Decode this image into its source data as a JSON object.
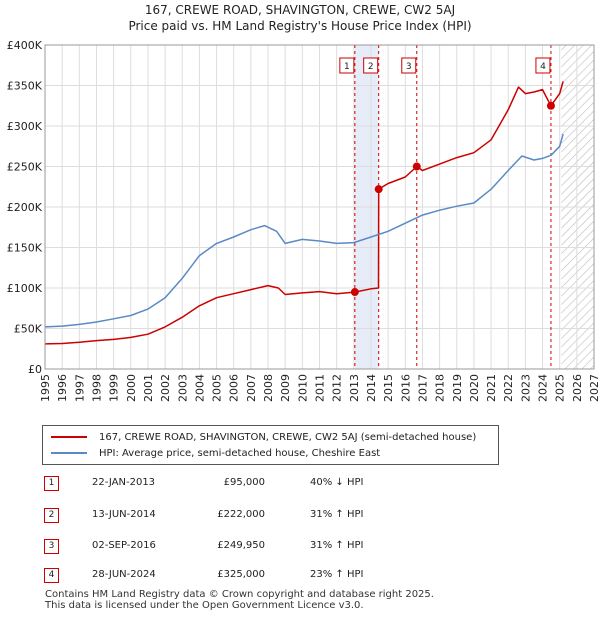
{
  "title_line1": "167, CREWE ROAD, SHAVINGTON, CREWE, CW2 5AJ",
  "title_line2": "Price paid vs. HM Land Registry's House Price Index (HPI)",
  "chart_data": {
    "type": "line",
    "x_range": [
      1995,
      2027
    ],
    "y_range": [
      0,
      400000
    ],
    "y_ticks": [
      {
        "value": 0,
        "label": "£0"
      },
      {
        "value": 50000,
        "label": "£50K"
      },
      {
        "value": 100000,
        "label": "£100K"
      },
      {
        "value": 150000,
        "label": "£150K"
      },
      {
        "value": 200000,
        "label": "£200K"
      },
      {
        "value": 250000,
        "label": "£250K"
      },
      {
        "value": 300000,
        "label": "£300K"
      },
      {
        "value": 350000,
        "label": "£350K"
      },
      {
        "value": 400000,
        "label": "£400K"
      }
    ],
    "x_ticks": [
      1995,
      1996,
      1997,
      1998,
      1999,
      2000,
      2001,
      2002,
      2003,
      2004,
      2005,
      2006,
      2007,
      2008,
      2009,
      2010,
      2011,
      2012,
      2013,
      2014,
      2015,
      2016,
      2017,
      2018,
      2019,
      2020,
      2021,
      2022,
      2023,
      2024,
      2025,
      2026,
      2027
    ],
    "grid": true,
    "forecast_hatch_from": 2025.1,
    "series": [
      {
        "name": "167, CREWE ROAD, SHAVINGTON, CREWE, CW2 5AJ (semi-detached house)",
        "color": "#cc0000",
        "points": [
          [
            1995,
            31000
          ],
          [
            1996,
            31500
          ],
          [
            1997,
            33000
          ],
          [
            1998,
            35000
          ],
          [
            1999,
            36500
          ],
          [
            2000,
            39000
          ],
          [
            2001,
            43000
          ],
          [
            2002,
            52000
          ],
          [
            2003,
            64000
          ],
          [
            2004,
            78000
          ],
          [
            2005,
            88000
          ],
          [
            2006,
            93000
          ],
          [
            2007,
            98000
          ],
          [
            2008,
            103000
          ],
          [
            2008.6,
            100000
          ],
          [
            2009,
            92000
          ],
          [
            2010,
            94000
          ],
          [
            2011,
            95500
          ],
          [
            2012,
            93000
          ],
          [
            2013.06,
            95000
          ],
          [
            2014,
            99000
          ],
          [
            2014.44,
            100000
          ],
          [
            2014.45,
            222000
          ],
          [
            2015,
            229000
          ],
          [
            2016,
            237000
          ],
          [
            2016.67,
            249950
          ],
          [
            2017,
            245000
          ],
          [
            2018,
            253000
          ],
          [
            2019,
            261000
          ],
          [
            2020,
            267000
          ],
          [
            2021,
            283000
          ],
          [
            2022,
            320000
          ],
          [
            2022.6,
            348000
          ],
          [
            2023,
            340000
          ],
          [
            2023.5,
            342000
          ],
          [
            2024,
            345000
          ],
          [
            2024.49,
            325000
          ],
          [
            2025,
            340000
          ],
          [
            2025.2,
            355000
          ]
        ]
      },
      {
        "name": "HPI: Average price, semi-detached house, Cheshire East",
        "color": "#5a8ac6",
        "points": [
          [
            1995,
            52000
          ],
          [
            1996,
            53000
          ],
          [
            1997,
            55000
          ],
          [
            1998,
            58000
          ],
          [
            1999,
            62000
          ],
          [
            2000,
            66000
          ],
          [
            2001,
            74000
          ],
          [
            2002,
            88000
          ],
          [
            2003,
            112000
          ],
          [
            2004,
            140000
          ],
          [
            2005,
            155000
          ],
          [
            2006,
            163000
          ],
          [
            2007,
            172000
          ],
          [
            2007.8,
            177000
          ],
          [
            2008.5,
            170000
          ],
          [
            2009,
            155000
          ],
          [
            2010,
            160000
          ],
          [
            2011,
            158000
          ],
          [
            2012,
            155000
          ],
          [
            2013,
            156000
          ],
          [
            2014,
            163000
          ],
          [
            2015,
            170000
          ],
          [
            2016,
            180000
          ],
          [
            2017,
            190000
          ],
          [
            2018,
            196000
          ],
          [
            2019,
            201000
          ],
          [
            2020,
            205000
          ],
          [
            2021,
            222000
          ],
          [
            2022,
            245000
          ],
          [
            2022.8,
            263000
          ],
          [
            2023.5,
            258000
          ],
          [
            2024,
            260000
          ],
          [
            2024.5,
            264000
          ],
          [
            2025,
            275000
          ],
          [
            2025.2,
            290000
          ]
        ]
      }
    ],
    "sales": [
      {
        "label": "1",
        "year": 2013.06,
        "price": 95000
      },
      {
        "label": "2",
        "year": 2014.45,
        "price": 222000
      },
      {
        "label": "3",
        "year": 2016.67,
        "price": 249950
      },
      {
        "label": "4",
        "year": 2024.49,
        "price": 325000
      }
    ],
    "highlight_band": [
      2013.06,
      2014.45
    ]
  },
  "legend": {
    "item1": "167, CREWE ROAD, SHAVINGTON, CREWE, CW2 5AJ (semi-detached house)",
    "item2": "HPI: Average price, semi-detached house, Cheshire East"
  },
  "transactions": [
    {
      "num": "1",
      "date": "22-JAN-2013",
      "price": "£95,000",
      "hpi": "40% ↓ HPI"
    },
    {
      "num": "2",
      "date": "13-JUN-2014",
      "price": "£222,000",
      "hpi": "31% ↑ HPI"
    },
    {
      "num": "3",
      "date": "02-SEP-2016",
      "price": "£249,950",
      "hpi": "31% ↑ HPI"
    },
    {
      "num": "4",
      "date": "28-JUN-2024",
      "price": "£325,000",
      "hpi": "23% ↑ HPI"
    }
  ],
  "footer_line1": "Contains HM Land Registry data © Crown copyright and database right 2025.",
  "footer_line2": "This data is licensed under the Open Government Licence v3.0."
}
